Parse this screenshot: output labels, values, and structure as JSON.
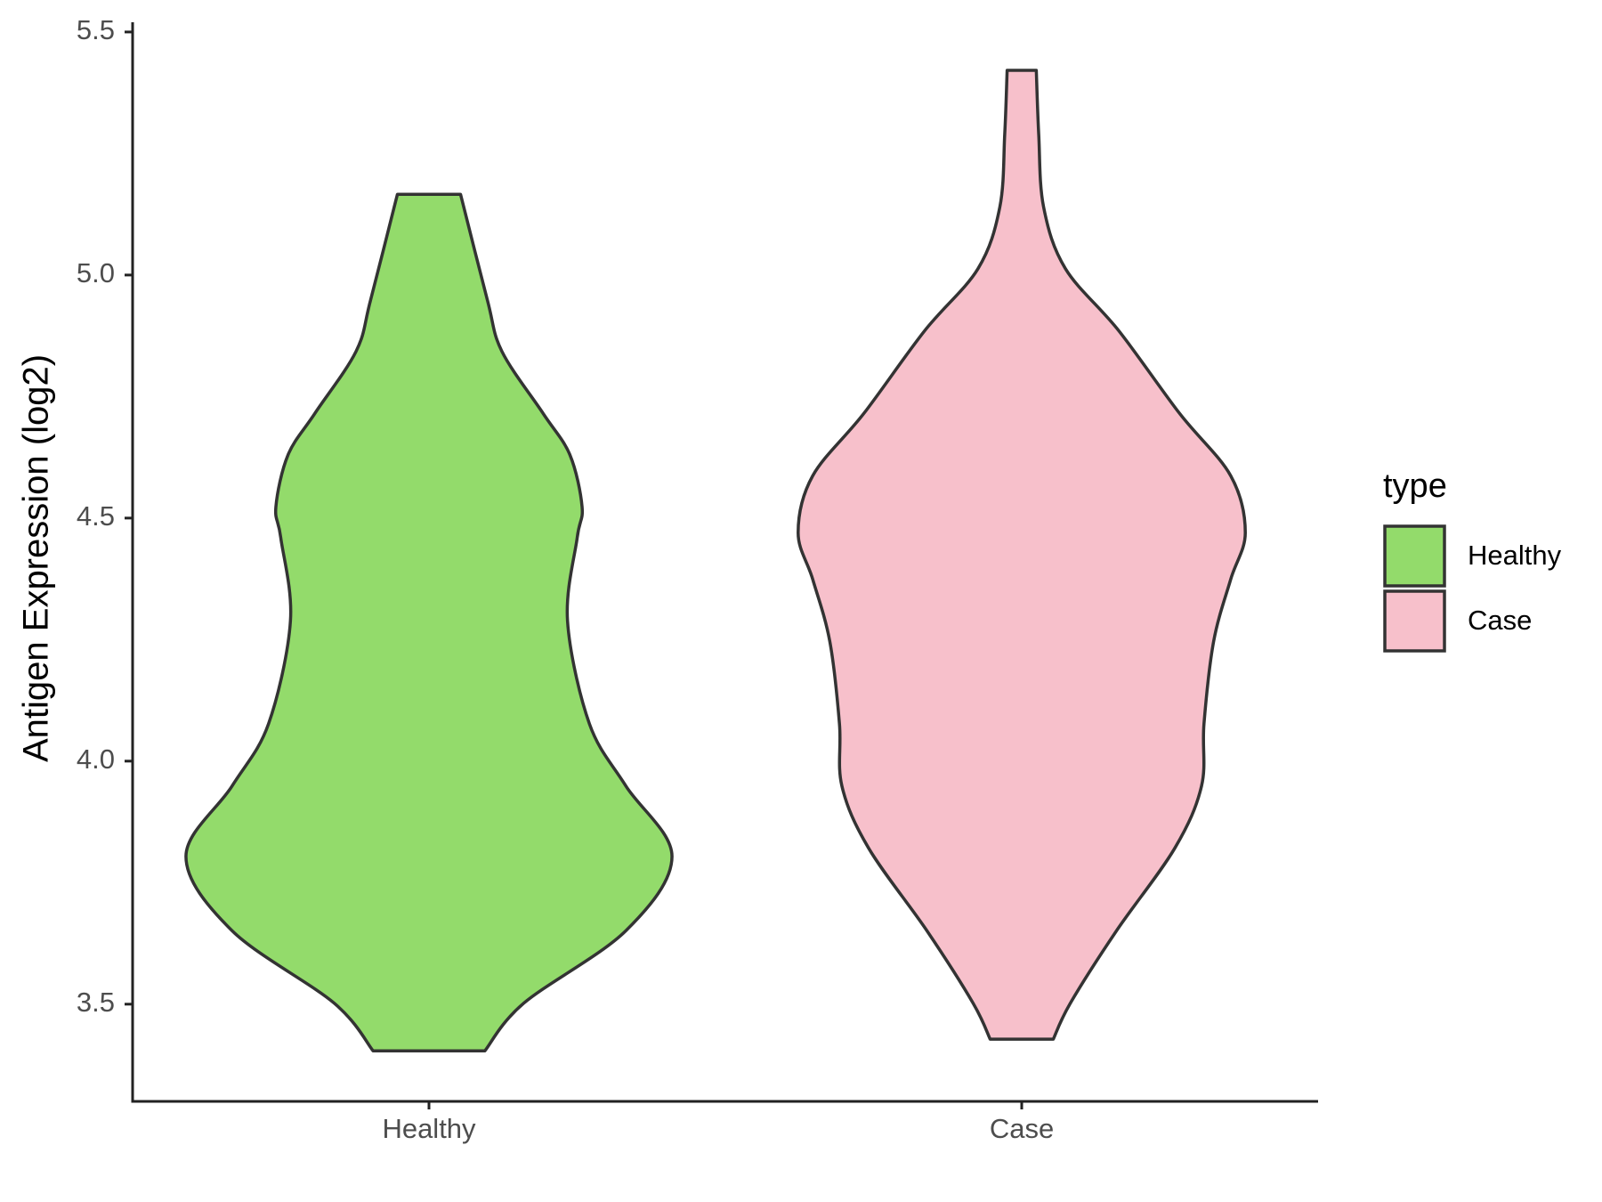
{
  "chart_data": {
    "type": "violin",
    "y_label": "Antigen Expression (log2)",
    "categories": [
      "Healthy",
      "Case"
    ],
    "legend_title": "type",
    "series": [
      {
        "name": "Healthy",
        "color": "#93db6b",
        "y": [
          3.404,
          3.502,
          3.651,
          3.804,
          3.949,
          4.077,
          4.289,
          4.46,
          4.523,
          4.63,
          4.715,
          4.843,
          4.949,
          5.166
        ],
        "density": [
          0.23,
          0.39,
          0.81,
          1.0,
          0.81,
          0.66,
          0.57,
          0.61,
          0.63,
          0.58,
          0.47,
          0.3,
          0.24,
          0.13
        ]
      },
      {
        "name": "Case",
        "color": "#f7c0cb",
        "y": [
          3.428,
          3.502,
          3.651,
          3.821,
          3.949,
          4.077,
          4.247,
          4.374,
          4.47,
          4.587,
          4.715,
          4.885,
          5.013,
          5.14,
          5.289,
          5.421
        ],
        "density": [
          0.13,
          0.2,
          0.39,
          0.63,
          0.74,
          0.75,
          0.79,
          0.86,
          0.92,
          0.86,
          0.65,
          0.4,
          0.18,
          0.09,
          0.07,
          0.06
        ]
      }
    ],
    "ylim": [
      3.3,
      5.52
    ],
    "yticks": [
      3.5,
      {
        "value": 4,
        "label": "4.0"
      },
      4.5,
      {
        "value": 5,
        "label": "5.0"
      },
      5.5
    ]
  }
}
